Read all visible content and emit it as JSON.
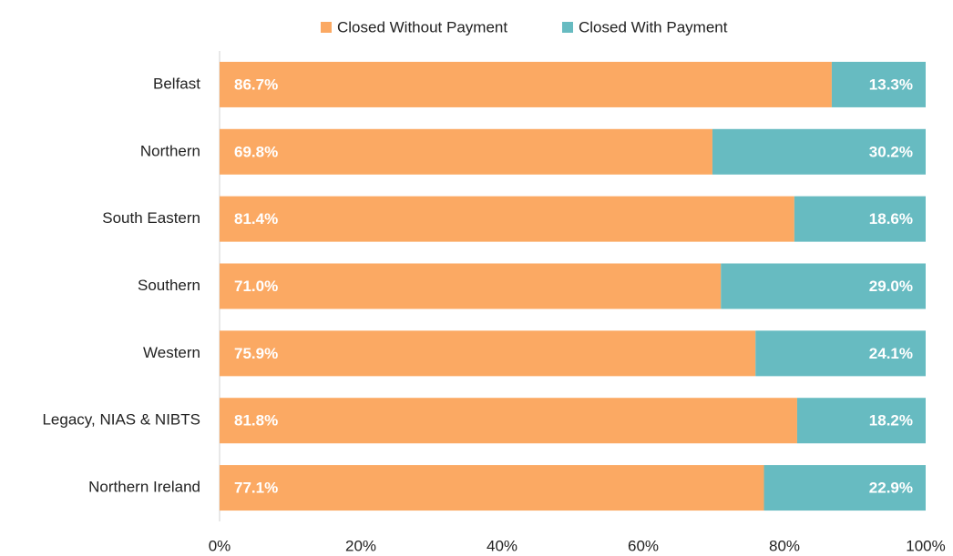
{
  "chart_data": {
    "type": "bar",
    "orientation": "horizontal",
    "stacked": true,
    "categories": [
      "Belfast",
      "Northern",
      "South Eastern",
      "Southern",
      "Western",
      "Legacy, NIAS & NIBTS",
      "Northern Ireland"
    ],
    "series": [
      {
        "name": "Closed Without Payment",
        "color": "#FBA963",
        "values": [
          86.7,
          69.8,
          81.4,
          71.0,
          75.9,
          81.8,
          77.1
        ],
        "value_labels": [
          "86.7%",
          "69.8%",
          "81.4%",
          "71.0%",
          "75.9%",
          "81.8%",
          "77.1%"
        ]
      },
      {
        "name": "Closed With Payment",
        "color": "#67BBC1",
        "values": [
          13.3,
          30.2,
          18.6,
          29.0,
          24.1,
          18.2,
          22.9
        ],
        "value_labels": [
          "13.3%",
          "30.2%",
          "18.6%",
          "29.0%",
          "24.1%",
          "18.2%",
          "22.9%"
        ]
      }
    ],
    "xlim": [
      0,
      100
    ],
    "xticks": [
      {
        "value": 0,
        "label": "0%"
      },
      {
        "value": 20,
        "label": "20%"
      },
      {
        "value": 40,
        "label": "40%"
      },
      {
        "value": 60,
        "label": "60%"
      },
      {
        "value": 80,
        "label": "80%"
      },
      {
        "value": 100,
        "label": "100%"
      }
    ],
    "grid": false,
    "legend": "top"
  }
}
